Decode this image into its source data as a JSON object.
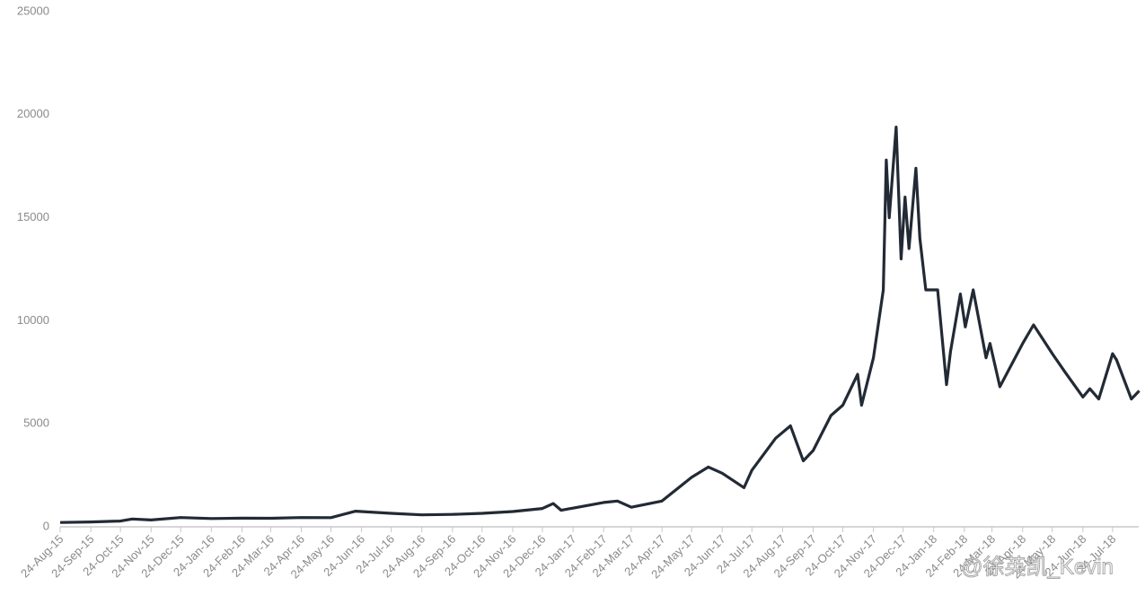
{
  "chart_data": {
    "type": "line",
    "watermark": "@徐英凯_Kevin",
    "x": [
      "2015-08-24",
      "2015-09-24",
      "2015-10-24",
      "2015-11-05",
      "2015-11-24",
      "2015-12-24",
      "2016-01-24",
      "2016-02-24",
      "2016-03-24",
      "2016-04-24",
      "2016-05-24",
      "2016-06-18",
      "2016-07-24",
      "2016-08-24",
      "2016-09-24",
      "2016-10-24",
      "2016-11-24",
      "2016-12-24",
      "2017-01-04",
      "2017-01-12",
      "2017-02-24",
      "2017-03-10",
      "2017-03-24",
      "2017-04-24",
      "2017-05-24",
      "2017-06-10",
      "2017-06-24",
      "2017-07-16",
      "2017-07-24",
      "2017-08-17",
      "2017-09-01",
      "2017-09-14",
      "2017-09-24",
      "2017-10-12",
      "2017-10-24",
      "2017-11-08",
      "2017-11-12",
      "2017-11-24",
      "2017-12-04",
      "2017-12-07",
      "2017-12-10",
      "2017-12-17",
      "2017-12-22",
      "2017-12-26",
      "2017-12-30",
      "2018-01-06",
      "2018-01-10",
      "2018-01-16",
      "2018-01-28",
      "2018-02-06",
      "2018-02-10",
      "2018-02-20",
      "2018-02-25",
      "2018-03-05",
      "2018-03-18",
      "2018-03-22",
      "2018-04-01",
      "2018-04-24",
      "2018-05-05",
      "2018-05-24",
      "2018-06-06",
      "2018-06-24",
      "2018-07-01",
      "2018-07-10",
      "2018-07-24",
      "2018-07-28",
      "2018-08-12",
      "2018-08-20"
    ],
    "series": [
      {
        "color": "#222a35",
        "values": [
          210,
          235,
          280,
          380,
          330,
          450,
          400,
          420,
          415,
          450,
          445,
          760,
          655,
          580,
          600,
          655,
          740,
          890,
          1130,
          800,
          1180,
          1250,
          950,
          1250,
          2400,
          2900,
          2600,
          1900,
          2750,
          4300,
          4900,
          3200,
          3700,
          5400,
          5900,
          7400,
          5900,
          8200,
          11500,
          17800,
          15000,
          19400,
          13000,
          16000,
          13500,
          17400,
          14000,
          11500,
          11500,
          6900,
          8500,
          11300,
          9700,
          11500,
          8200,
          8900,
          6800,
          8900,
          9800,
          8400,
          7500,
          6300,
          6700,
          6200,
          8400,
          8100,
          6200,
          6600
        ]
      }
    ],
    "xlim": [
      "2015-08-24",
      "2018-08-24"
    ],
    "xticks": [
      {
        "value": "2015-08-24",
        "label": "24-Aug-15"
      },
      {
        "value": "2015-09-24",
        "label": "24-Sep-15"
      },
      {
        "value": "2015-10-24",
        "label": "24-Oct-15"
      },
      {
        "value": "2015-11-24",
        "label": "24-Nov-15"
      },
      {
        "value": "2015-12-24",
        "label": "24-Dec-15"
      },
      {
        "value": "2016-01-24",
        "label": "24-Jan-16"
      },
      {
        "value": "2016-02-24",
        "label": "24-Feb-16"
      },
      {
        "value": "2016-03-24",
        "label": "24-Mar-16"
      },
      {
        "value": "2016-04-24",
        "label": "24-Apr-16"
      },
      {
        "value": "2016-05-24",
        "label": "24-May-16"
      },
      {
        "value": "2016-06-24",
        "label": "24-Jun-16"
      },
      {
        "value": "2016-07-24",
        "label": "24-Jul-16"
      },
      {
        "value": "2016-08-24",
        "label": "24-Aug-16"
      },
      {
        "value": "2016-09-24",
        "label": "24-Sep-16"
      },
      {
        "value": "2016-10-24",
        "label": "24-Oct-16"
      },
      {
        "value": "2016-11-24",
        "label": "24-Nov-16"
      },
      {
        "value": "2016-12-24",
        "label": "24-Dec-16"
      },
      {
        "value": "2017-01-24",
        "label": "24-Jan-17"
      },
      {
        "value": "2017-02-24",
        "label": "24-Feb-17"
      },
      {
        "value": "2017-03-24",
        "label": "24-Mar-17"
      },
      {
        "value": "2017-04-24",
        "label": "24-Apr-17"
      },
      {
        "value": "2017-05-24",
        "label": "24-May-17"
      },
      {
        "value": "2017-06-24",
        "label": "24-Jun-17"
      },
      {
        "value": "2017-07-24",
        "label": "24-Jul-17"
      },
      {
        "value": "2017-08-24",
        "label": "24-Aug-17"
      },
      {
        "value": "2017-09-24",
        "label": "24-Sep-17"
      },
      {
        "value": "2017-10-24",
        "label": "24-Oct-17"
      },
      {
        "value": "2017-11-24",
        "label": "24-Nov-17"
      },
      {
        "value": "2017-12-24",
        "label": "24-Dec-17"
      },
      {
        "value": "2018-01-24",
        "label": "24-Jan-18"
      },
      {
        "value": "2018-02-24",
        "label": "24-Feb-18"
      },
      {
        "value": "2018-03-24",
        "label": "24-Mar-18"
      },
      {
        "value": "2018-04-24",
        "label": "24-Apr-18"
      },
      {
        "value": "2018-05-24",
        "label": "24-May-18"
      },
      {
        "value": "2018-06-24",
        "label": "24-Jun-18"
      },
      {
        "value": "2018-07-24",
        "label": "24-Jul-18"
      }
    ],
    "ylim": [
      0,
      25000
    ],
    "yticks": [
      0,
      5000,
      10000,
      15000,
      20000,
      25000
    ]
  }
}
